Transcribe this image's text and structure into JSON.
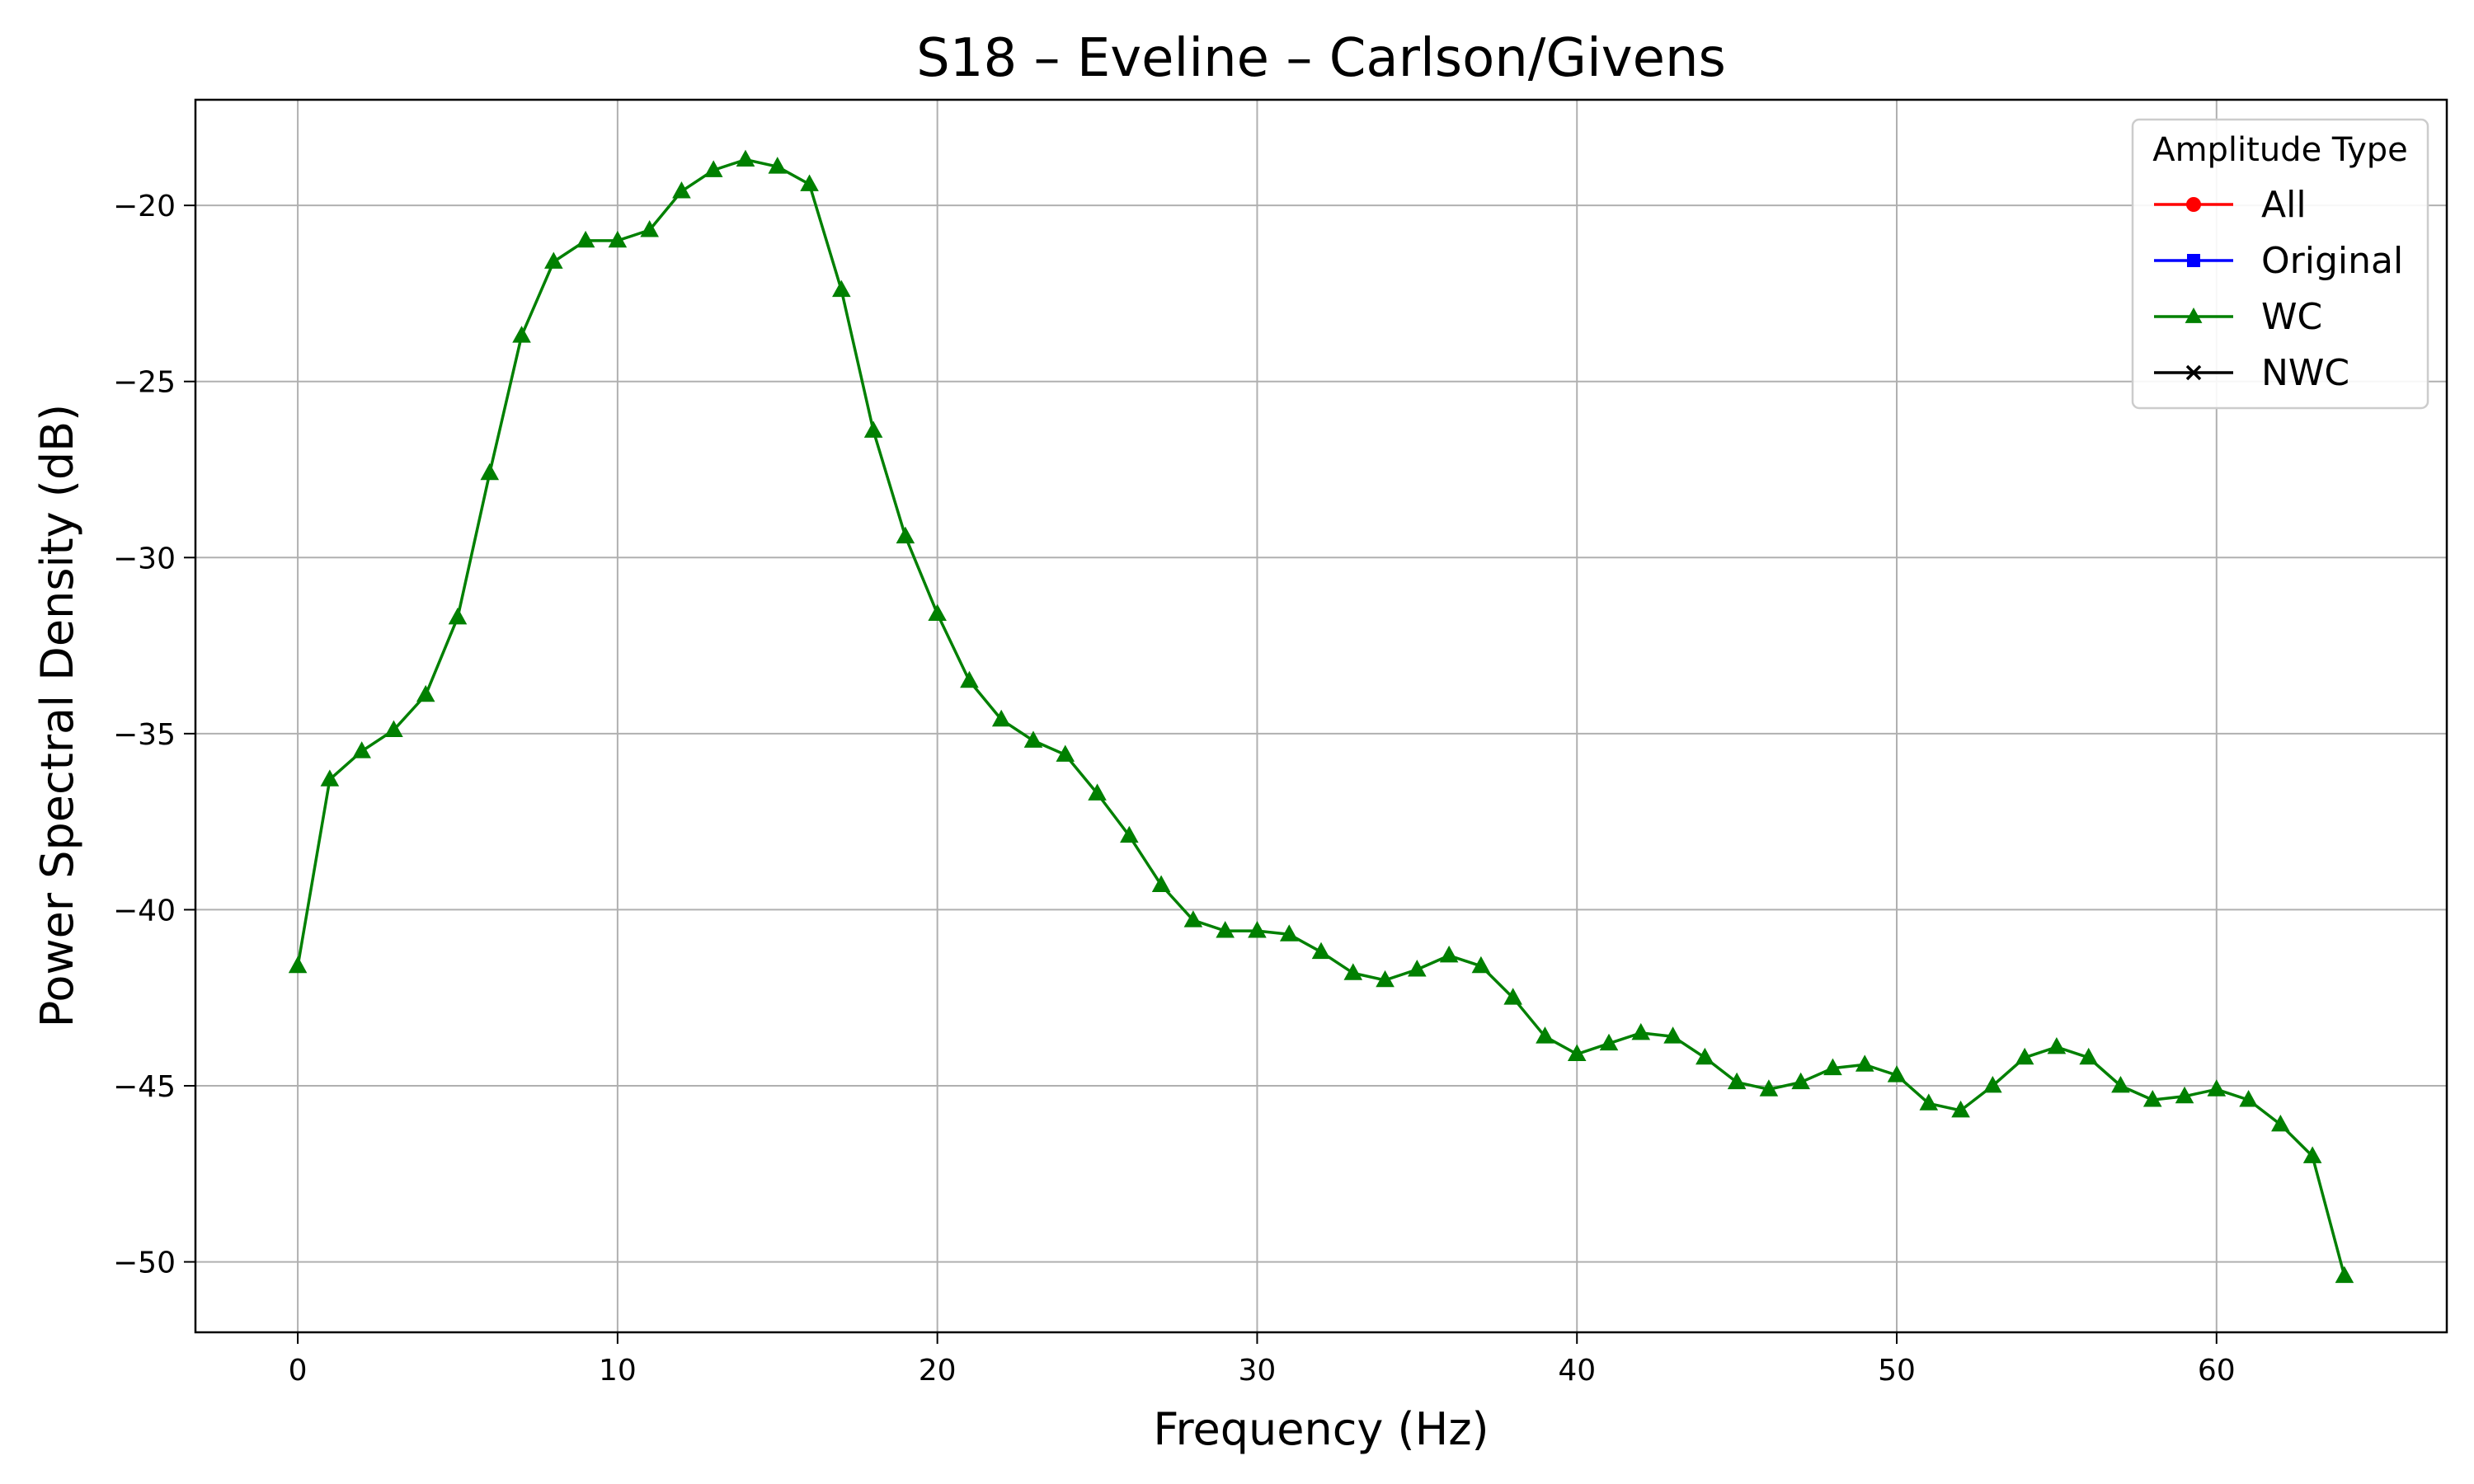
{
  "chart_data": {
    "type": "line",
    "title": "S18 – Eveline – Carlson/Givens",
    "xlabel": "Frequency (Hz)",
    "ylabel": "Power Spectral Density (dB)",
    "xlim": [
      -3.2,
      67.2
    ],
    "ylim": [
      -52.0,
      -17.0
    ],
    "x_ticks": [
      0,
      10,
      20,
      30,
      40,
      50,
      60
    ],
    "x_tick_labels": [
      "0",
      "10",
      "20",
      "30",
      "40",
      "50",
      "60"
    ],
    "y_ticks": [
      -50,
      -45,
      -40,
      -35,
      -30,
      -25,
      -20
    ],
    "y_tick_labels": [
      "−50",
      "−45",
      "−40",
      "−35",
      "−30",
      "−25",
      "−20"
    ],
    "grid": true,
    "legend": {
      "title": "Amplitude Type",
      "placement": "top-right",
      "entries": [
        {
          "label": "All",
          "color": "#ff0000",
          "marker": "circle"
        },
        {
          "label": "Original",
          "color": "#0000ff",
          "marker": "square"
        },
        {
          "label": "WC",
          "color": "#008000",
          "marker": "triangle"
        },
        {
          "label": "NWC",
          "color": "#000000",
          "marker": "x"
        }
      ]
    },
    "series": [
      {
        "name": "WC",
        "color": "#008000",
        "marker": "triangle",
        "x": [
          0,
          1,
          2,
          3,
          4,
          5,
          6,
          7,
          8,
          9,
          10,
          11,
          12,
          13,
          14,
          15,
          16,
          17,
          18,
          19,
          20,
          21,
          22,
          23,
          24,
          25,
          26,
          27,
          28,
          29,
          30,
          31,
          32,
          33,
          34,
          35,
          36,
          37,
          38,
          39,
          40,
          41,
          42,
          43,
          44,
          45,
          46,
          47,
          48,
          49,
          50,
          51,
          52,
          53,
          54,
          55,
          56,
          57,
          58,
          59,
          60,
          61,
          62,
          63,
          64
        ],
        "y": [
          -41.6,
          -36.3,
          -35.5,
          -34.9,
          -33.9,
          -31.7,
          -27.6,
          -23.7,
          -21.6,
          -21.0,
          -21.0,
          -20.7,
          -19.6,
          -19.0,
          -18.7,
          -18.9,
          -19.4,
          -22.4,
          -26.4,
          -29.4,
          -31.6,
          -33.5,
          -34.6,
          -35.2,
          -35.6,
          -36.7,
          -37.9,
          -39.3,
          -40.3,
          -40.6,
          -40.6,
          -40.7,
          -41.2,
          -41.8,
          -42.0,
          -41.7,
          -41.3,
          -41.6,
          -42.5,
          -43.6,
          -44.1,
          -43.8,
          -43.5,
          -43.6,
          -44.2,
          -44.9,
          -45.1,
          -44.9,
          -44.5,
          -44.4,
          -44.7,
          -45.5,
          -45.7,
          -45.0,
          -44.2,
          -43.9,
          -44.2,
          -45.0,
          -45.4,
          -45.3,
          -45.1,
          -45.4,
          -46.1,
          -47.0,
          -50.4
        ]
      }
    ]
  }
}
